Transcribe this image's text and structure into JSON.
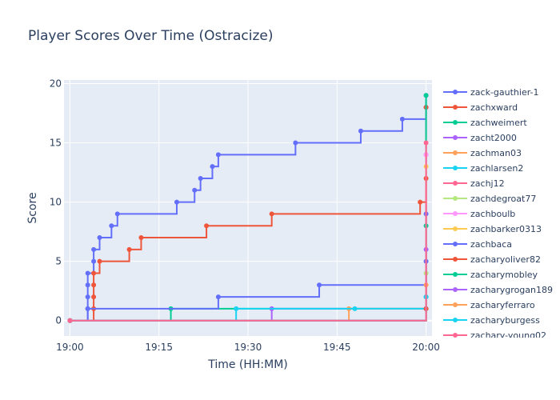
{
  "chart_data": {
    "type": "line",
    "title": "Player Scores Over Time (Ostracize)",
    "xlabel": "Time (HH:MM)",
    "ylabel": "Score",
    "x_ticks": [
      "19:00",
      "19:15",
      "19:30",
      "19:45",
      "20:00"
    ],
    "y_ticks": [
      0,
      5,
      10,
      15,
      20
    ],
    "xlim": [
      "18:59",
      "20:01"
    ],
    "ylim": [
      -1.3,
      20.3
    ],
    "line_shape": "step",
    "grid": true,
    "legend_position": "right",
    "series": [
      {
        "name": "zack-gauthier-1",
        "color": "#636efa",
        "points": [
          [
            "19:00",
            0
          ],
          [
            "19:03",
            1
          ],
          [
            "19:03",
            2
          ],
          [
            "19:03",
            3
          ],
          [
            "19:03",
            4
          ],
          [
            "19:04",
            5
          ],
          [
            "19:04",
            6
          ],
          [
            "19:05",
            7
          ],
          [
            "19:07",
            8
          ],
          [
            "19:08",
            9
          ],
          [
            "19:18",
            10
          ],
          [
            "19:21",
            11
          ],
          [
            "19:22",
            12
          ],
          [
            "19:24",
            13
          ],
          [
            "19:25",
            14
          ],
          [
            "19:38",
            15
          ],
          [
            "19:49",
            16
          ],
          [
            "19:56",
            17
          ],
          [
            "20:00",
            18
          ],
          [
            "20:00",
            19
          ]
        ]
      },
      {
        "name": "zachxward",
        "color": "#ef553b",
        "points": [
          [
            "19:00",
            0
          ],
          [
            "19:04",
            1
          ],
          [
            "19:04",
            2
          ],
          [
            "19:04",
            3
          ],
          [
            "19:04",
            4
          ],
          [
            "19:05",
            5
          ],
          [
            "19:10",
            6
          ],
          [
            "19:12",
            7
          ],
          [
            "19:23",
            8
          ],
          [
            "19:34",
            9
          ],
          [
            "19:59",
            10
          ],
          [
            "20:00",
            18
          ]
        ]
      },
      {
        "name": "zachweimert",
        "color": "#00cc96",
        "points": [
          [
            "19:00",
            0
          ],
          [
            "19:17",
            1
          ],
          [
            "20:00",
            1
          ],
          [
            "20:00",
            19
          ]
        ]
      },
      {
        "name": "zacht2000",
        "color": "#ab63fa",
        "points": [
          [
            "19:00",
            0
          ],
          [
            "19:34",
            1
          ],
          [
            "20:00",
            1
          ]
        ]
      },
      {
        "name": "zachman03",
        "color": "#ffa15a",
        "points": [
          [
            "19:00",
            0
          ],
          [
            "19:47",
            1
          ],
          [
            "20:00",
            1
          ]
        ]
      },
      {
        "name": "zachlarsen2",
        "color": "#19d3f3",
        "points": [
          [
            "19:00",
            0
          ],
          [
            "19:28",
            1
          ],
          [
            "19:48",
            1
          ],
          [
            "20:00",
            1
          ]
        ]
      },
      {
        "name": "zachj12",
        "color": "#ff6692",
        "points": [
          [
            "19:00",
            0
          ],
          [
            "20:00",
            14
          ]
        ]
      },
      {
        "name": "zachdegroat77",
        "color": "#b6e880",
        "points": [
          [
            "19:00",
            0
          ],
          [
            "20:00",
            4
          ]
        ]
      },
      {
        "name": "zachboulb",
        "color": "#ff97ff",
        "points": [
          [
            "19:00",
            0
          ],
          [
            "20:00",
            14
          ]
        ]
      },
      {
        "name": "zachbarker0313",
        "color": "#fecb52",
        "points": [
          [
            "19:00",
            0
          ],
          [
            "20:00",
            13
          ]
        ]
      },
      {
        "name": "zachbaca",
        "color": "#636efa",
        "points": [
          [
            "19:00",
            0
          ],
          [
            "19:03",
            1
          ],
          [
            "19:25",
            2
          ],
          [
            "19:42",
            3
          ],
          [
            "20:00",
            5
          ],
          [
            "20:00",
            9
          ]
        ]
      },
      {
        "name": "zacharyoliver82",
        "color": "#ef553b",
        "points": [
          [
            "19:00",
            0
          ],
          [
            "20:00",
            1
          ],
          [
            "20:00",
            12
          ]
        ]
      },
      {
        "name": "zacharymobley",
        "color": "#00cc96",
        "points": [
          [
            "19:00",
            0
          ],
          [
            "20:00",
            2
          ],
          [
            "20:00",
            8
          ]
        ]
      },
      {
        "name": "zacharygrogan189",
        "color": "#ab63fa",
        "points": [
          [
            "19:00",
            0
          ],
          [
            "20:00",
            6
          ]
        ]
      },
      {
        "name": "zacharyferraro",
        "color": "#ffa15a",
        "points": [
          [
            "19:00",
            0
          ],
          [
            "20:00",
            3
          ]
        ]
      },
      {
        "name": "zacharyburgess",
        "color": "#19d3f3",
        "points": [
          [
            "19:00",
            0
          ],
          [
            "20:00",
            2
          ]
        ]
      },
      {
        "name": "zachary-young02",
        "color": "#ff6692",
        "points": [
          [
            "19:00",
            0
          ],
          [
            "20:00",
            15
          ]
        ]
      }
    ]
  }
}
